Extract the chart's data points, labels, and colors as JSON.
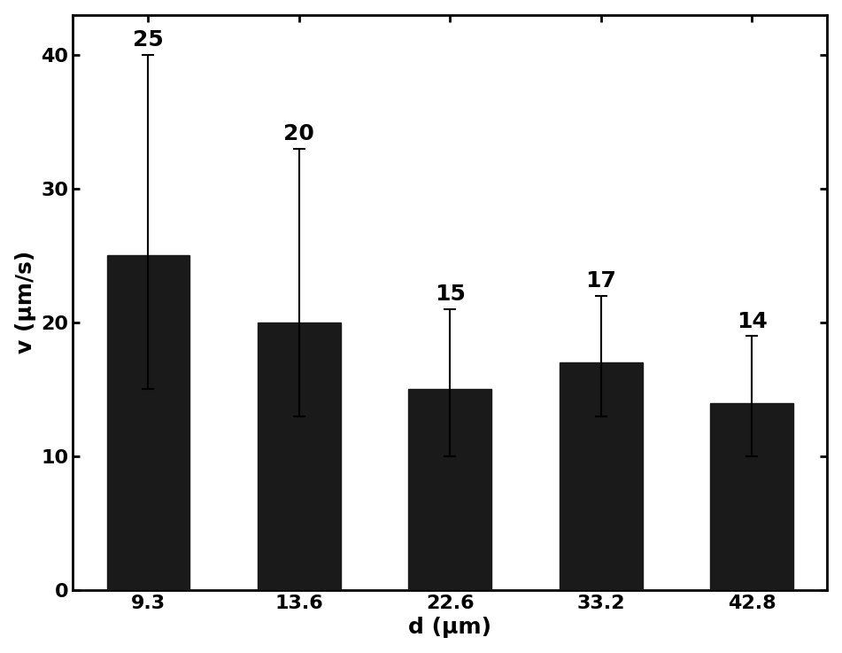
{
  "categories": [
    "9.3",
    "13.6",
    "22.6",
    "33.2",
    "42.8"
  ],
  "values": [
    25,
    20,
    15,
    17,
    14
  ],
  "errors_upper": [
    15,
    13,
    6,
    5,
    5
  ],
  "errors_lower": [
    10,
    7,
    5,
    4,
    4
  ],
  "bar_color": "#1a1a1a",
  "bar_width": 0.55,
  "xlabel": "d (μm)",
  "ylabel": "v (μm/s)",
  "ylim": [
    0,
    43
  ],
  "yticks": [
    0,
    10,
    20,
    30,
    40
  ],
  "label_fontsize": 18,
  "tick_fontsize": 16,
  "annotation_fontsize": 18,
  "background_color": "#ffffff",
  "figure_bg_color": "#ffffff",
  "spine_linewidth": 2.0,
  "figure_border_linewidth": 3.0
}
